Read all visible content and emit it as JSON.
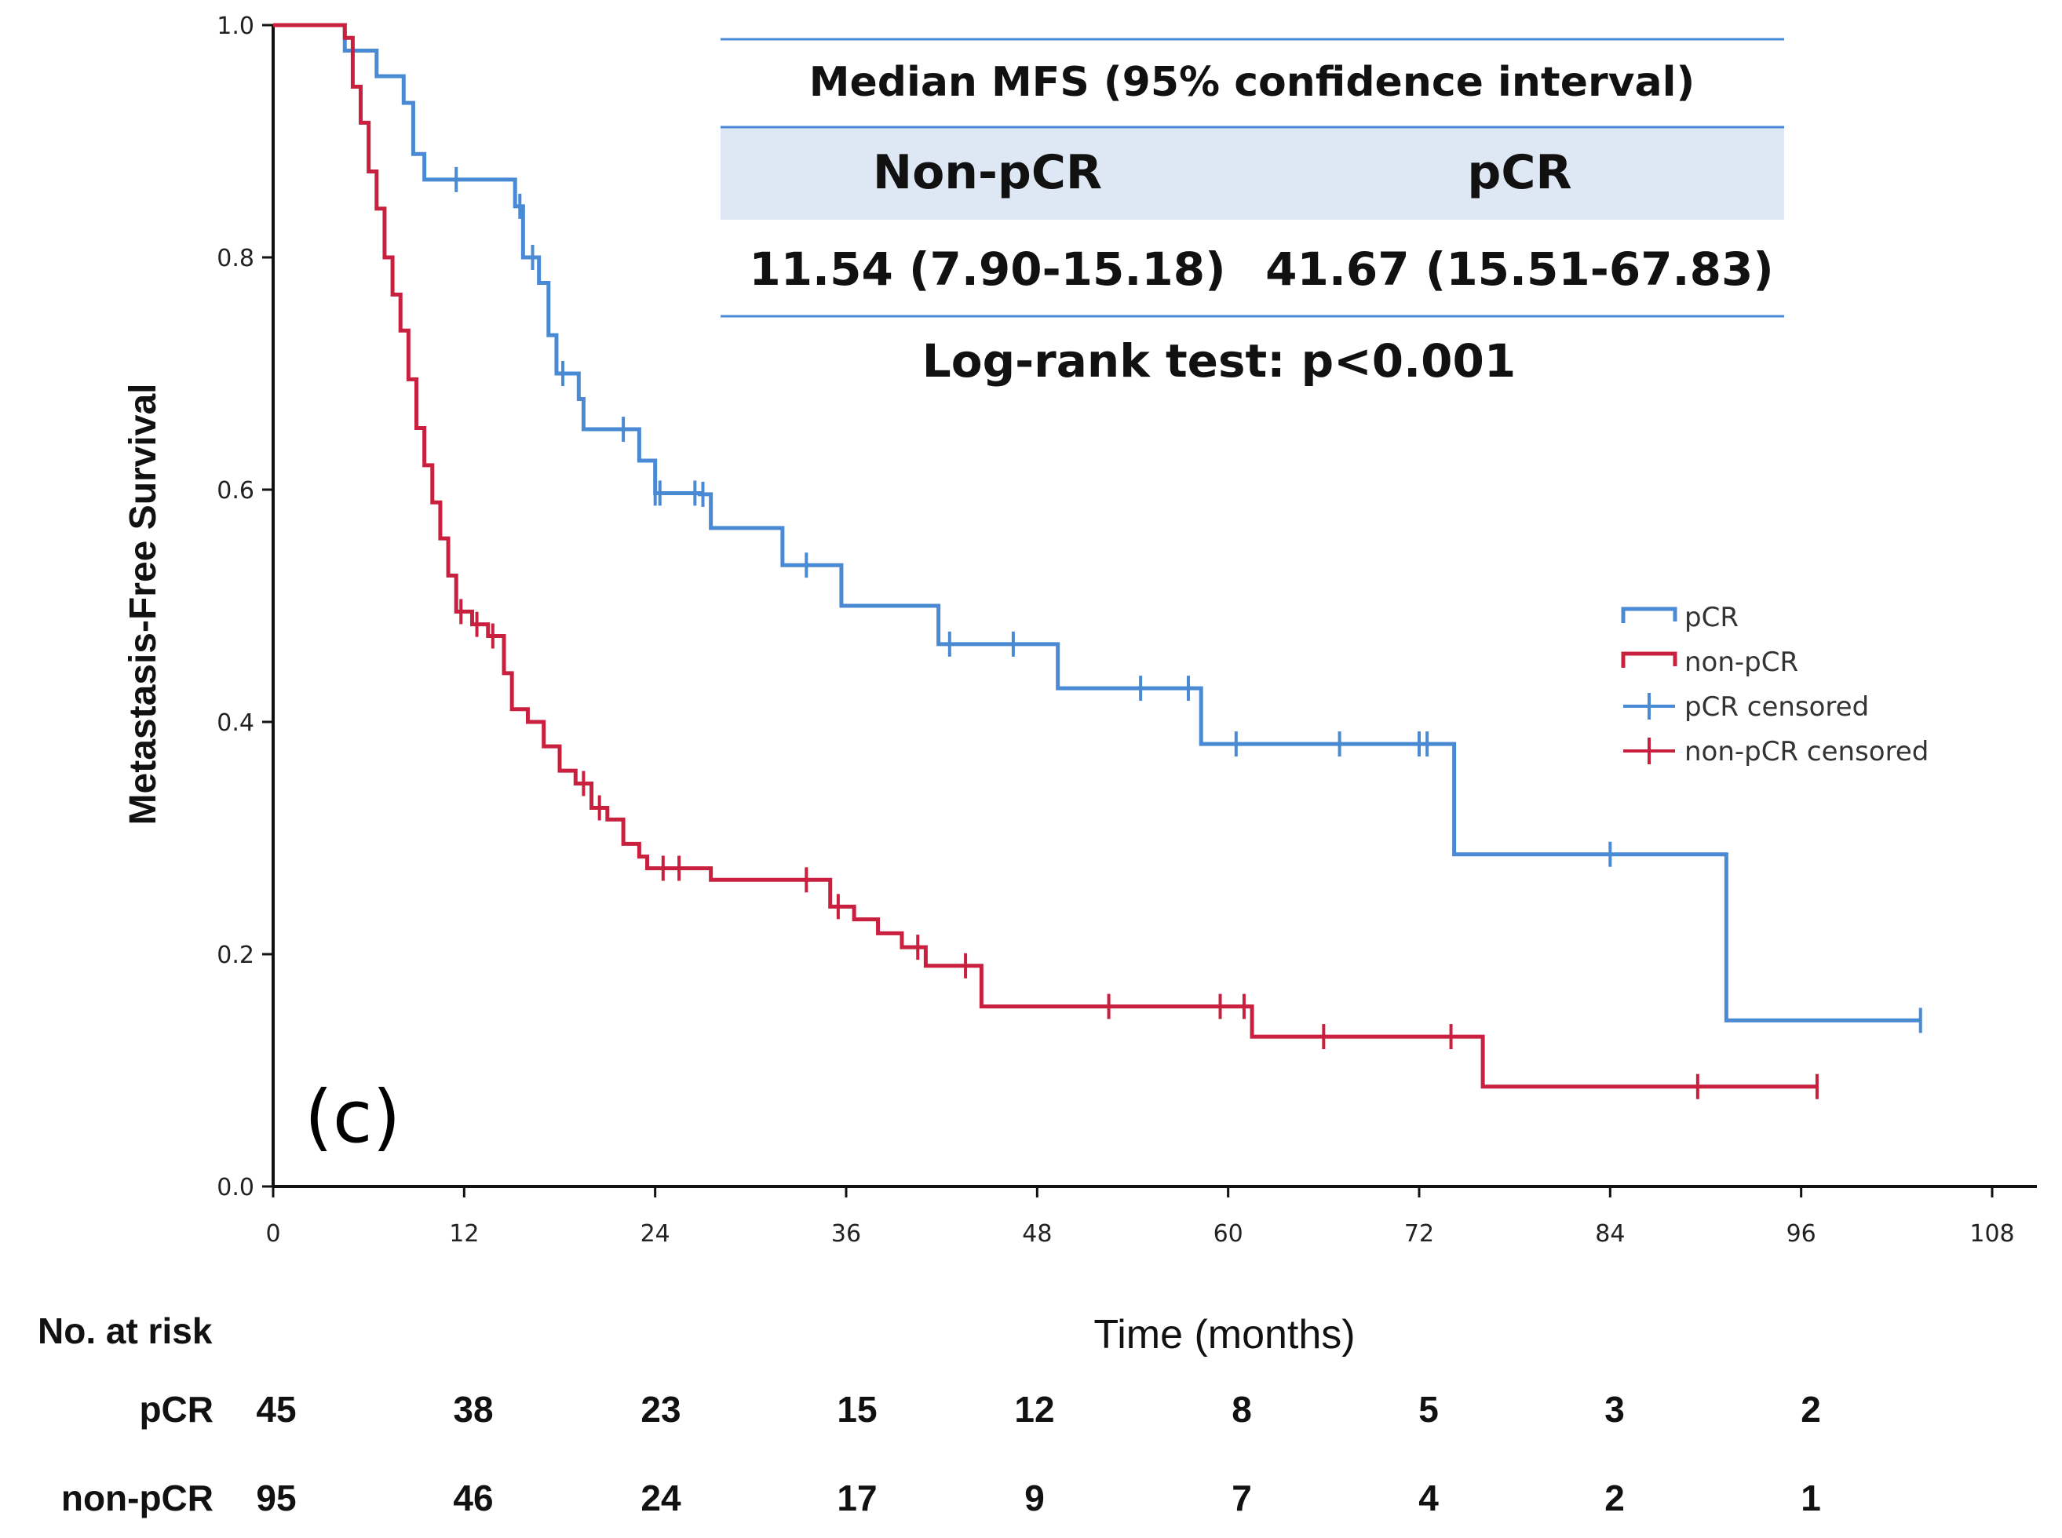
{
  "chart_data": {
    "type": "line",
    "subtype": "kaplan-meier step",
    "panel_label": "(c)",
    "ylabel": "Metastasis-Free Survival",
    "xlabel": "Time (months)",
    "xlim": [
      0,
      108
    ],
    "ylim": [
      0.0,
      1.0
    ],
    "x_ticks": [
      "0",
      "12",
      "24",
      "36",
      "48",
      "60",
      "72",
      "84",
      "96",
      "108"
    ],
    "y_ticks": [
      "0.0",
      "0.2",
      "0.4",
      "0.6",
      "0.8",
      "1.0"
    ],
    "series": [
      {
        "name": "pCR",
        "color": "#4a8ad4",
        "steps": [
          [
            0,
            1.0
          ],
          [
            4.5,
            0.978
          ],
          [
            6.5,
            0.956
          ],
          [
            8.2,
            0.933
          ],
          [
            8.8,
            0.889
          ],
          [
            9.5,
            0.867
          ],
          [
            15.2,
            0.844
          ],
          [
            15.7,
            0.8
          ],
          [
            16.7,
            0.778
          ],
          [
            17.3,
            0.733
          ],
          [
            17.8,
            0.7
          ],
          [
            19.2,
            0.678
          ],
          [
            19.5,
            0.652
          ],
          [
            23.0,
            0.625
          ],
          [
            24.0,
            0.597
          ],
          [
            26.8,
            0.596
          ],
          [
            27.5,
            0.567
          ],
          [
            32.0,
            0.535
          ],
          [
            35.7,
            0.5
          ],
          [
            41.8,
            0.467
          ],
          [
            49.3,
            0.429
          ],
          [
            58.3,
            0.381
          ],
          [
            74.2,
            0.286
          ],
          [
            91.3,
            0.143
          ],
          [
            103.5,
            0.143
          ]
        ],
        "censored_x": [
          11.5,
          15.5,
          16.3,
          18.2,
          22,
          24,
          24.3,
          26.5,
          27,
          33.5,
          42.5,
          46.5,
          54.5,
          57.5,
          60.5,
          67,
          72,
          72.5,
          84,
          103.5
        ]
      },
      {
        "name": "non-pCR",
        "color": "#c8203e",
        "steps": [
          [
            0,
            1.0
          ],
          [
            4.5,
            0.989
          ],
          [
            5.0,
            0.947
          ],
          [
            5.5,
            0.916
          ],
          [
            6.0,
            0.874
          ],
          [
            6.5,
            0.842
          ],
          [
            7.0,
            0.8
          ],
          [
            7.5,
            0.768
          ],
          [
            8.0,
            0.737
          ],
          [
            8.5,
            0.695
          ],
          [
            9.0,
            0.653
          ],
          [
            9.5,
            0.621
          ],
          [
            10.0,
            0.589
          ],
          [
            10.5,
            0.558
          ],
          [
            11.0,
            0.526
          ],
          [
            11.5,
            0.495
          ],
          [
            12.5,
            0.484
          ],
          [
            13.5,
            0.474
          ],
          [
            14.5,
            0.442
          ],
          [
            15.0,
            0.411
          ],
          [
            16.0,
            0.4
          ],
          [
            17.0,
            0.379
          ],
          [
            18.0,
            0.358
          ],
          [
            19.0,
            0.347
          ],
          [
            20.0,
            0.326
          ],
          [
            21.0,
            0.316
          ],
          [
            22.0,
            0.295
          ],
          [
            23.0,
            0.284
          ],
          [
            23.5,
            0.274
          ],
          [
            27.5,
            0.264
          ],
          [
            35.0,
            0.241
          ],
          [
            36.5,
            0.23
          ],
          [
            38.0,
            0.218
          ],
          [
            39.5,
            0.206
          ],
          [
            41.0,
            0.19
          ],
          [
            44.5,
            0.155
          ],
          [
            61.5,
            0.129
          ],
          [
            76.0,
            0.086
          ],
          [
            97.0,
            0.086
          ]
        ],
        "censored_x": [
          11.8,
          12.8,
          13.8,
          19.5,
          20.5,
          24.5,
          25.5,
          33.5,
          35.5,
          40.5,
          43.5,
          52.5,
          59.5,
          61,
          66,
          74,
          89.5,
          97
        ]
      }
    ],
    "legend": [
      {
        "label": "pCR",
        "kind": "line",
        "color": "#4a8ad4"
      },
      {
        "label": "non-pCR",
        "kind": "line",
        "color": "#c8203e"
      },
      {
        "label": "pCR censored",
        "kind": "censor",
        "color": "#4a8ad4"
      },
      {
        "label": "non-pCR censored",
        "kind": "censor",
        "color": "#c8203e"
      }
    ],
    "legend_position": "right",
    "summary_table": {
      "title": "Median MFS (95% confidence interval)",
      "col1_header": "Non-pCR",
      "col2_header": "pCR",
      "col1_value": "11.54 (7.90-15.18)",
      "col2_value": "41.67 (15.51-67.83)",
      "footnote": "Log-rank test: p<0.001"
    },
    "risk_table": {
      "title": "No. at risk",
      "time_points": [
        0,
        12,
        24,
        36,
        48,
        60,
        72,
        84,
        96
      ],
      "rows": [
        {
          "label": "pCR",
          "values": [
            "45",
            "38",
            "23",
            "15",
            "12",
            "8",
            "5",
            "3",
            "2"
          ]
        },
        {
          "label": "non-pCR",
          "values": [
            "95",
            "46",
            "24",
            "17",
            "9",
            "7",
            "4",
            "2",
            "1"
          ]
        }
      ]
    }
  }
}
